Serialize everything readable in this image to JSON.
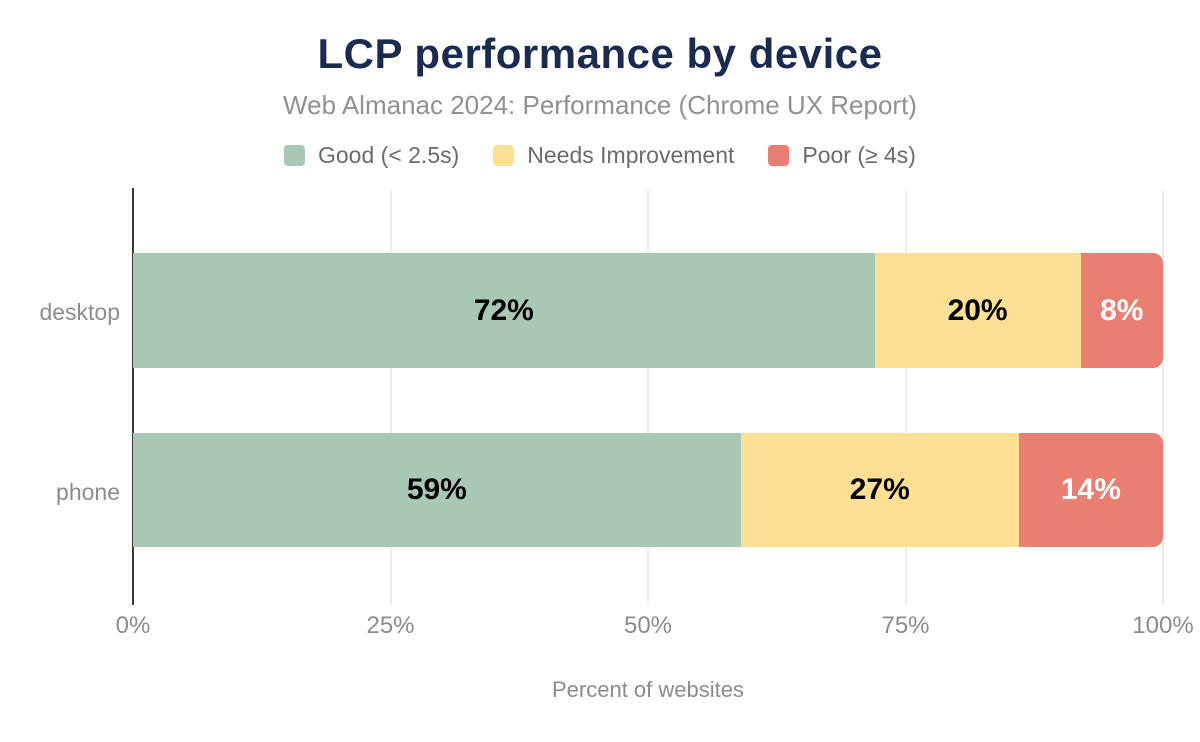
{
  "title": "LCP performance by device",
  "subtitle": "Web Almanac 2024: Performance (Chrome UX Report)",
  "legend": [
    {
      "label": "Good (< 2.5s)",
      "color": "#a8c7b4"
    },
    {
      "label": "Needs Improvement",
      "color": "#fde093"
    },
    {
      "label": "Poor (≥ 4s)",
      "color": "#e87f72"
    }
  ],
  "chart_data": {
    "type": "bar",
    "orientation": "horizontal",
    "stacked": true,
    "categories": [
      "desktop",
      "phone"
    ],
    "series": [
      {
        "name": "Good (< 2.5s)",
        "color": "#a8c7b4",
        "values": [
          72,
          59
        ],
        "labels": [
          "72%",
          "59%"
        ],
        "label_color": "#000000"
      },
      {
        "name": "Needs Improvement",
        "color": "#fde093",
        "values": [
          20,
          27
        ],
        "labels": [
          "20%",
          "27%"
        ],
        "label_color": "#000000"
      },
      {
        "name": "Poor (≥ 4s)",
        "color": "#e87f72",
        "values": [
          8,
          14
        ],
        "labels": [
          "8%",
          "14%"
        ],
        "label_color": "#ffffff"
      }
    ],
    "title": "LCP performance by device",
    "subtitle": "Web Almanac 2024: Performance (Chrome UX Report)",
    "xlabel": "Percent of websites",
    "ylabel": "",
    "xlim": [
      0,
      100
    ],
    "x_ticks": [
      "0%",
      "25%",
      "50%",
      "75%",
      "100%"
    ],
    "grid": true,
    "legend_position": "top",
    "colors": {
      "title_text": "#1a2b4f",
      "muted_text": "#8c8c8c",
      "gridline": "#ededed",
      "axis_line": "#3a393e",
      "background": "#ffffff"
    }
  }
}
